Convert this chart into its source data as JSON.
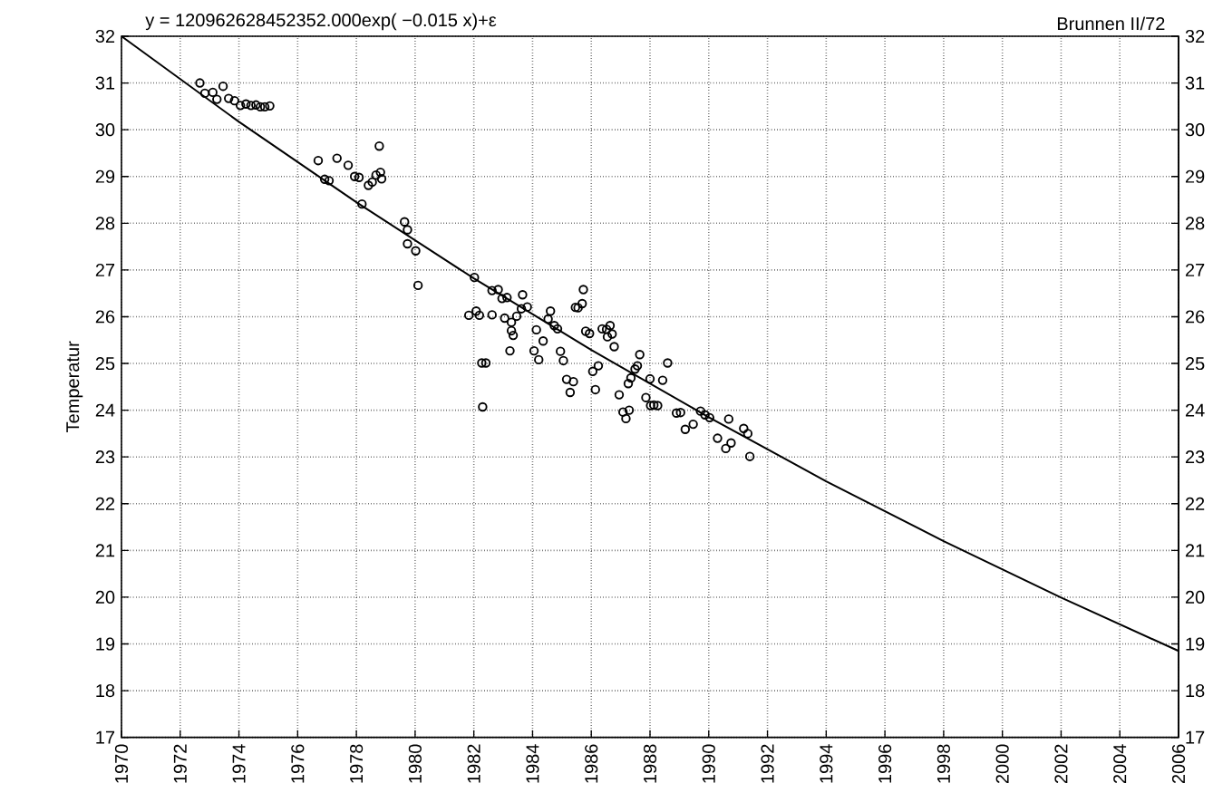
{
  "chart_data": {
    "type": "scatter",
    "annotations": [
      "y = 120962628452352.000exp( −0.015 x)+ε",
      "Brunnen II/72"
    ],
    "ylabel": "Temperatur",
    "xlim": [
      1970,
      2006
    ],
    "xticks": [
      1970,
      1972,
      1974,
      1976,
      1978,
      1980,
      1982,
      1984,
      1986,
      1988,
      1990,
      1992,
      1994,
      1996,
      1998,
      2000,
      2002,
      2004,
      2006
    ],
    "ylim": [
      17,
      32
    ],
    "yticks": [
      17,
      18,
      19,
      20,
      21,
      22,
      23,
      24,
      25,
      26,
      27,
      28,
      29,
      30,
      31,
      32
    ],
    "y2lim": [
      17,
      32
    ],
    "y2ticks": [
      17,
      18,
      19,
      20,
      21,
      22,
      23,
      24,
      25,
      26,
      27,
      28,
      29,
      30,
      31,
      32
    ],
    "grid": true,
    "series": [
      {
        "type": "scatter",
        "marker": "circle",
        "color": "#000000",
        "x": [
          1972.67,
          1972.84,
          1973.11,
          1973.25,
          1973.46,
          1973.65,
          1973.85,
          1974.05,
          1974.24,
          1974.41,
          1974.58,
          1974.73,
          1974.88,
          1975.05,
          1976.7,
          1976.92,
          1977.07,
          1977.34,
          1977.72,
          1977.94,
          1978.09,
          1978.19,
          1978.41,
          1978.54,
          1978.67,
          1978.82,
          1978.86,
          1978.78,
          1979.64,
          1979.74,
          1979.74,
          1980.02,
          1980.1,
          1982.02,
          1981.83,
          1982.08,
          1982.19,
          1982.62,
          1982.62,
          1982.83,
          1982.96,
          1983.13,
          1983.05,
          1983.28,
          1983.28,
          1983.34,
          1983.23,
          1983.46,
          1983.66,
          1983.62,
          1983.82,
          1982.27,
          1982.41,
          1982.3,
          1984.13,
          1984.05,
          1984.21,
          1984.36,
          1984.53,
          1984.61,
          1984.74,
          1984.85,
          1984.95,
          1985.05,
          1985.16,
          1985.39,
          1985.28,
          1985.46,
          1985.55,
          1985.69,
          1985.73,
          1985.81,
          1985.94,
          1986.05,
          1986.24,
          1986.14,
          1986.37,
          1986.52,
          1986.64,
          1986.55,
          1986.71,
          1986.78,
          1986.95,
          1987.08,
          1987.18,
          1987.29,
          1987.26,
          1987.35,
          1987.49,
          1987.57,
          1987.65,
          1988.0,
          1987.86,
          1988.02,
          1988.13,
          1988.26,
          1988.43,
          1988.6,
          1988.9,
          1989.04,
          1989.2,
          1989.47,
          1989.72,
          1989.87,
          1990.03,
          1990.3,
          1990.58,
          1990.76,
          1990.68,
          1991.19,
          1991.33,
          1991.4
        ],
        "values": [
          31.0,
          30.78,
          30.8,
          30.65,
          30.93,
          30.67,
          30.62,
          30.52,
          30.55,
          30.52,
          30.53,
          30.49,
          30.49,
          30.51,
          29.34,
          28.94,
          28.91,
          29.39,
          29.24,
          29.0,
          28.98,
          28.41,
          28.81,
          28.88,
          29.03,
          29.09,
          28.95,
          29.65,
          28.03,
          27.86,
          27.56,
          27.41,
          26.67,
          26.84,
          26.03,
          26.12,
          26.03,
          26.04,
          26.56,
          26.58,
          26.39,
          26.41,
          25.97,
          25.88,
          25.7,
          25.6,
          25.27,
          26.01,
          26.47,
          26.17,
          26.21,
          25.01,
          25.01,
          24.07,
          25.72,
          25.27,
          25.08,
          25.48,
          25.95,
          26.12,
          25.81,
          25.74,
          25.26,
          25.06,
          24.66,
          24.61,
          24.38,
          26.2,
          26.19,
          26.28,
          26.58,
          25.69,
          25.64,
          24.83,
          24.95,
          24.44,
          25.74,
          25.73,
          25.81,
          25.57,
          25.63,
          25.36,
          24.33,
          23.96,
          23.82,
          24.0,
          24.57,
          24.69,
          24.88,
          24.95,
          25.19,
          24.67,
          24.27,
          24.1,
          24.11,
          24.1,
          24.64,
          25.01,
          23.94,
          23.95,
          23.59,
          23.7,
          23.98,
          23.9,
          23.84,
          23.4,
          23.18,
          23.3,
          23.81,
          23.61,
          23.5,
          23.01
        ]
      },
      {
        "type": "line",
        "color": "#000000",
        "line_style": "solid",
        "x": [
          1970,
          1974,
          1978,
          1982,
          1986,
          1990,
          1994,
          1998,
          2002,
          2006
        ],
        "values": [
          32.0,
          30.17,
          28.45,
          26.82,
          25.29,
          23.85,
          22.48,
          21.2,
          19.99,
          18.85
        ]
      }
    ]
  }
}
